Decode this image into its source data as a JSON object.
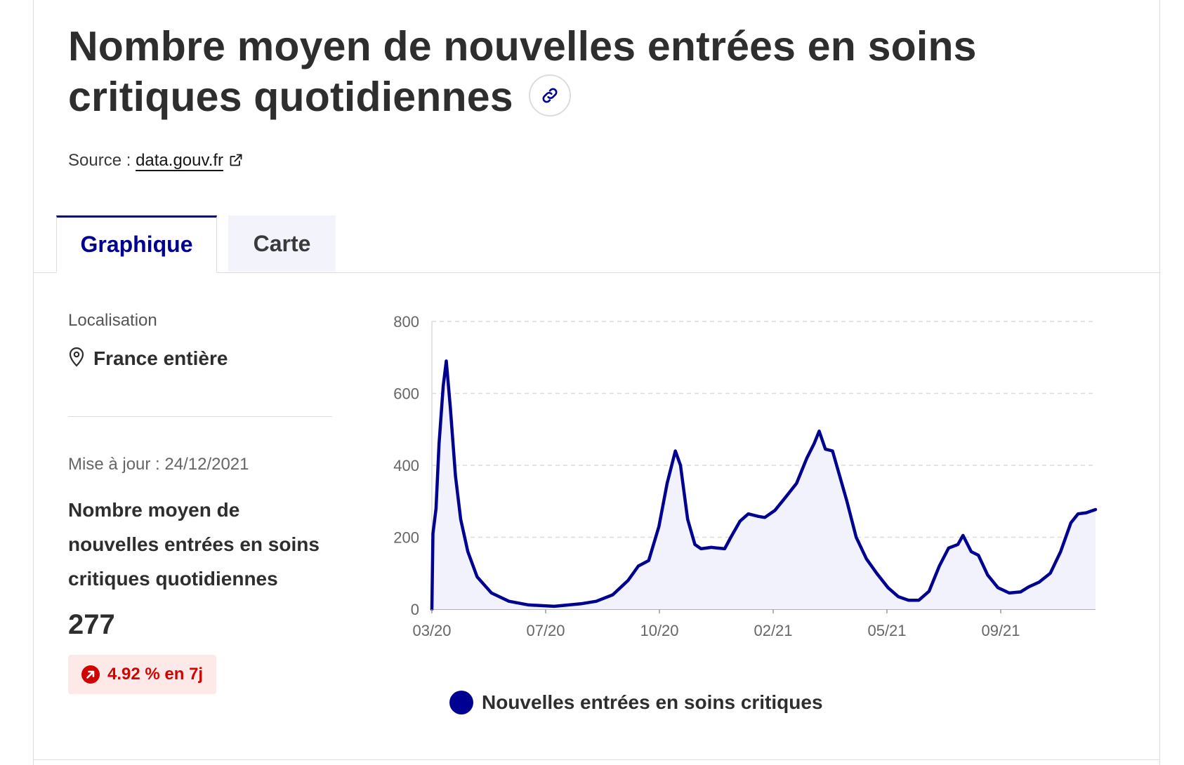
{
  "header": {
    "title": "Nombre moyen de nouvelles entrées en soins critiques quotidiennes",
    "source_prefix": "Source :",
    "source_link": "data.gouv.fr"
  },
  "tabs": [
    {
      "label": "Graphique",
      "active": true
    },
    {
      "label": "Carte",
      "active": false
    }
  ],
  "sidebar": {
    "location_label": "Localisation",
    "location_value": "France entière",
    "updated": "Mise à jour : 24/12/2021",
    "indicator_title": "Nombre moyen de nouvelles entrées en soins critiques quotidiennes",
    "indicator_value": "277",
    "trend": "4.92 % en 7j"
  },
  "colors": {
    "primary": "#000091",
    "fill": "#f2f2fc",
    "trend_bg": "#fee9e9",
    "trend_text": "#ce0500",
    "tab_inactive_bg": "#f3f3fb"
  },
  "icons": {
    "permalink": "link-icon",
    "source": "external-link-icon",
    "location": "map-pin-icon",
    "trend": "arrow-up-right-icon"
  },
  "chart_data": {
    "type": "area",
    "x_ticks": [
      "03/20",
      "07/20",
      "10/20",
      "02/21",
      "05/21",
      "09/21"
    ],
    "ylim": [
      0,
      800
    ],
    "y_ticks": [
      0,
      200,
      400,
      600,
      800
    ],
    "xlim": [
      "2020-03-18",
      "2021-12-24"
    ],
    "grid": "horizontal dashed",
    "legend": "bottom",
    "series": [
      {
        "name": "Nouvelles entrées en soins critiques",
        "points": [
          [
            "2020-03-18",
            0
          ],
          [
            "2020-03-19",
            210
          ],
          [
            "2020-03-22",
            280
          ],
          [
            "2020-03-25",
            460
          ],
          [
            "2020-03-29",
            620
          ],
          [
            "2020-04-01",
            690
          ],
          [
            "2020-04-05",
            560
          ],
          [
            "2020-04-10",
            370
          ],
          [
            "2020-04-15",
            250
          ],
          [
            "2020-04-22",
            160
          ],
          [
            "2020-05-01",
            90
          ],
          [
            "2020-05-15",
            45
          ],
          [
            "2020-06-01",
            22
          ],
          [
            "2020-06-20",
            12
          ],
          [
            "2020-07-15",
            8
          ],
          [
            "2020-08-10",
            15
          ],
          [
            "2020-08-25",
            22
          ],
          [
            "2020-09-10",
            40
          ],
          [
            "2020-09-25",
            80
          ],
          [
            "2020-10-05",
            120
          ],
          [
            "2020-10-15",
            135
          ],
          [
            "2020-10-25",
            230
          ],
          [
            "2020-11-02",
            350
          ],
          [
            "2020-11-10",
            440
          ],
          [
            "2020-11-15",
            400
          ],
          [
            "2020-11-22",
            250
          ],
          [
            "2020-11-29",
            180
          ],
          [
            "2020-12-05",
            168
          ],
          [
            "2020-12-15",
            172
          ],
          [
            "2020-12-28",
            168
          ],
          [
            "2021-01-03",
            200
          ],
          [
            "2021-01-12",
            245
          ],
          [
            "2021-01-20",
            265
          ],
          [
            "2021-01-30",
            258
          ],
          [
            "2021-02-05",
            255
          ],
          [
            "2021-02-15",
            275
          ],
          [
            "2021-02-25",
            310
          ],
          [
            "2021-03-08",
            350
          ],
          [
            "2021-03-18",
            420
          ],
          [
            "2021-03-25",
            460
          ],
          [
            "2021-03-30",
            495
          ],
          [
            "2021-04-05",
            445
          ],
          [
            "2021-04-12",
            440
          ],
          [
            "2021-04-18",
            380
          ],
          [
            "2021-04-26",
            300
          ],
          [
            "2021-05-05",
            200
          ],
          [
            "2021-05-15",
            140
          ],
          [
            "2021-05-25",
            100
          ],
          [
            "2021-06-05",
            60
          ],
          [
            "2021-06-15",
            35
          ],
          [
            "2021-06-25",
            25
          ],
          [
            "2021-07-05",
            25
          ],
          [
            "2021-07-15",
            50
          ],
          [
            "2021-07-25",
            120
          ],
          [
            "2021-08-03",
            170
          ],
          [
            "2021-08-12",
            180
          ],
          [
            "2021-08-17",
            205
          ],
          [
            "2021-08-25",
            160
          ],
          [
            "2021-09-01",
            150
          ],
          [
            "2021-09-10",
            95
          ],
          [
            "2021-09-20",
            60
          ],
          [
            "2021-10-01",
            45
          ],
          [
            "2021-10-12",
            48
          ],
          [
            "2021-10-20",
            62
          ],
          [
            "2021-10-30",
            75
          ],
          [
            "2021-11-10",
            100
          ],
          [
            "2021-11-20",
            160
          ],
          [
            "2021-11-30",
            240
          ],
          [
            "2021-12-07",
            265
          ],
          [
            "2021-12-15",
            268
          ],
          [
            "2021-12-24",
            277
          ]
        ]
      }
    ]
  }
}
